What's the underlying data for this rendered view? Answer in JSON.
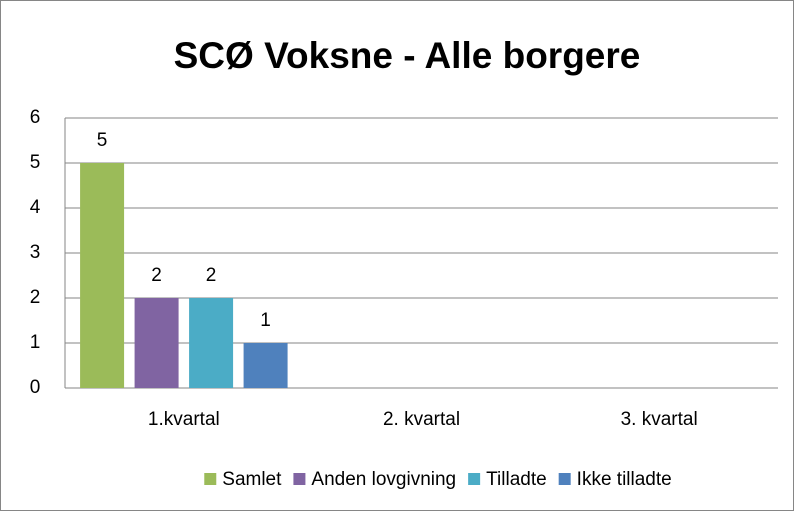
{
  "chart_data": {
    "type": "bar",
    "title": "SCØ Voksne - Alle borgere",
    "categories": [
      "1.kvartal",
      "2. kvartal",
      "3. kvartal"
    ],
    "series": [
      {
        "name": "Samlet",
        "color": "#9bbb59",
        "values": [
          5,
          null,
          null
        ]
      },
      {
        "name": "Anden lovgivning",
        "color": "#8064a2",
        "values": [
          2,
          null,
          null
        ]
      },
      {
        "name": "Tilladte",
        "color": "#4bacc6",
        "values": [
          2,
          null,
          null
        ]
      },
      {
        "name": "Ikke tilladte",
        "color": "#4f81bd",
        "values": [
          1,
          null,
          null
        ]
      }
    ],
    "ylim": [
      0,
      6
    ],
    "yticks": [
      0,
      1,
      2,
      3,
      4,
      5,
      6
    ],
    "grid": true,
    "legend": "bottom"
  }
}
